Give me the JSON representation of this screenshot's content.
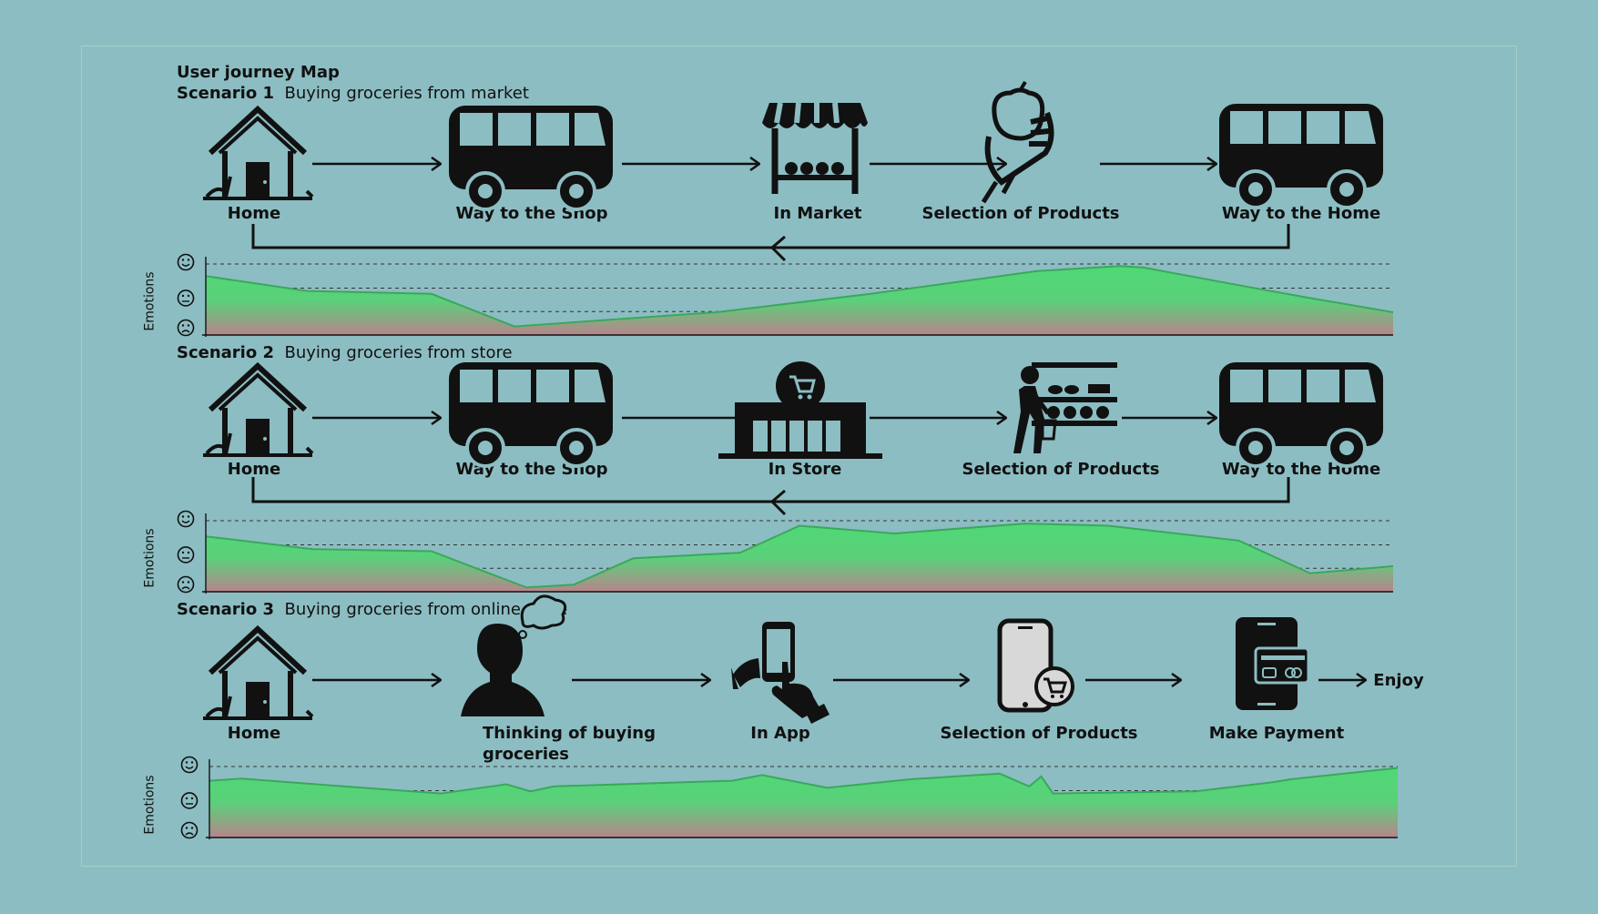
{
  "title": "User journey Map",
  "colors": {
    "background": "#8cbdc2",
    "emotion_green": "#4fd876",
    "emotion_low": "#b8848c",
    "ink": "#111111"
  },
  "emotions_label": "Emotions",
  "scenarios": [
    {
      "number_label": "Scenario 1",
      "description": "Buying groceries from market",
      "steps": [
        {
          "label": "Home",
          "icon": "house-icon"
        },
        {
          "label": "Way to the Shop",
          "icon": "bus-icon"
        },
        {
          "label": "In Market",
          "icon": "market-stall-icon"
        },
        {
          "label": "Selection of Products",
          "icon": "hand-apple-icon"
        },
        {
          "label": "Way to the Home",
          "icon": "bus-icon"
        }
      ]
    },
    {
      "number_label": "Scenario 2",
      "description": "Buying groceries from store",
      "steps": [
        {
          "label": "Home",
          "icon": "house-icon"
        },
        {
          "label": "Way to the Shop",
          "icon": "bus-icon"
        },
        {
          "label": "In Store",
          "icon": "store-cart-icon"
        },
        {
          "label": "Selection of Products",
          "icon": "shopper-shelf-icon"
        },
        {
          "label": "Way to the Home",
          "icon": "bus-icon"
        }
      ]
    },
    {
      "number_label": "Scenario 3",
      "description": "Buying groceries from online store",
      "steps": [
        {
          "label": "Home",
          "icon": "house-icon"
        },
        {
          "label": "Thinking of buying groceries",
          "icon": "thinking-person-icon"
        },
        {
          "label": "In App",
          "icon": "hand-phone-icon"
        },
        {
          "label": "Selection of Products",
          "icon": "phone-cart-icon"
        },
        {
          "label": "Make Payment",
          "icon": "phone-card-icon"
        }
      ],
      "end_label": "Enjoy"
    }
  ],
  "chart_data": [
    {
      "type": "area",
      "y_levels": [
        "sad",
        "neutral",
        "happy"
      ],
      "ylim": [
        0,
        1
      ],
      "x": [
        0,
        0.085,
        0.19,
        0.26,
        0.43,
        0.56,
        0.7,
        0.77,
        0.79,
        0.88,
        0.93,
        1.0
      ],
      "values": [
        0.83,
        0.62,
        0.58,
        0.12,
        0.32,
        0.58,
        0.9,
        0.97,
        0.95,
        0.67,
        0.52,
        0.32
      ]
    },
    {
      "type": "area",
      "y_levels": [
        "sad",
        "neutral",
        "happy"
      ],
      "ylim": [
        0,
        1
      ],
      "x": [
        0,
        0.09,
        0.19,
        0.27,
        0.31,
        0.36,
        0.45,
        0.5,
        0.58,
        0.69,
        0.76,
        0.87,
        0.93,
        1.0
      ],
      "values": [
        0.78,
        0.6,
        0.57,
        0.06,
        0.1,
        0.47,
        0.55,
        0.93,
        0.82,
        0.96,
        0.93,
        0.72,
        0.26,
        0.36
      ]
    },
    {
      "type": "area",
      "y_levels": [
        "sad",
        "neutral",
        "happy"
      ],
      "ylim": [
        0,
        1
      ],
      "x": [
        0,
        0.027,
        0.13,
        0.195,
        0.25,
        0.27,
        0.29,
        0.44,
        0.465,
        0.52,
        0.59,
        0.665,
        0.69,
        0.7,
        0.71,
        0.83,
        0.895,
        0.91,
        1.0
      ],
      "values": [
        0.8,
        0.83,
        0.7,
        0.62,
        0.75,
        0.65,
        0.72,
        0.8,
        0.88,
        0.7,
        0.82,
        0.9,
        0.72,
        0.86,
        0.62,
        0.65,
        0.78,
        0.82,
        0.98
      ]
    }
  ]
}
